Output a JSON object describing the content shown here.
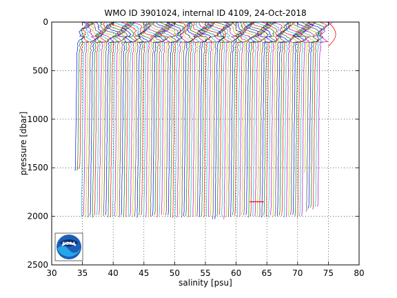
{
  "chart_data": {
    "type": "line",
    "title": "WMO ID 3901024, internal ID 4109, 24-Oct-2018",
    "xlabel": "salinity [psu]",
    "ylabel": "pressure [dbar]",
    "xlim": [
      30,
      80
    ],
    "ylim": [
      0,
      2500
    ],
    "y_reversed": true,
    "grid": true,
    "x_ticks": [
      30,
      35,
      40,
      45,
      50,
      55,
      60,
      65,
      70,
      75,
      80
    ],
    "y_ticks": [
      0,
      500,
      1000,
      1500,
      2000,
      2500
    ],
    "x_tick_labels": [
      "30",
      "35",
      "40",
      "45",
      "50",
      "55",
      "60",
      "65",
      "70",
      "75",
      "80"
    ],
    "y_tick_labels": [
      "0",
      "500",
      "1000",
      "1500",
      "2000",
      "2500"
    ],
    "series_colors": [
      "#0000ff",
      "#008000",
      "#ff0000",
      "#00bfbf",
      "#bf00bf",
      "#bfbf00",
      "#404040"
    ],
    "profiles": {
      "first_salinity_offset": 35.0,
      "last_salinity_offset": 74.5,
      "count": 110,
      "deep_pressure": 2000,
      "shallow_profiles_end_pressures": [
        1550,
        1950,
        1920,
        1910,
        1930,
        1900,
        1900
      ]
    },
    "annotation_line": {
      "x_start": 62.2,
      "x_end": 64.5,
      "y": 1850,
      "color": "#ff0000"
    }
  },
  "logo": {
    "text": "NOAA",
    "icon": "noaa-logo-icon"
  }
}
